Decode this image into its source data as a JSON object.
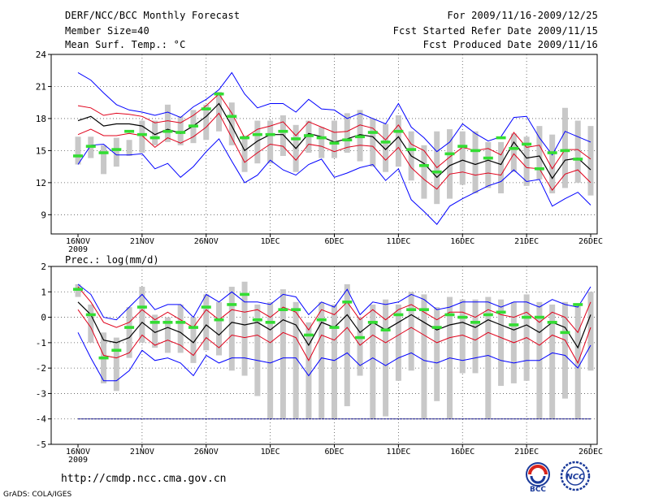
{
  "header": {
    "title": "DERF/NCC/BCC Monthly Forecast",
    "member_size": "Member Size=40",
    "variable": "Mean Surf. Temp.: °C",
    "forecast_period": "For 2009/11/16-2009/12/25",
    "fcst_started": "Fcst Started Refer Date 2009/11/15",
    "fcst_produced": "Fcst Produced Date 2009/11/16"
  },
  "footer": {
    "url": "http://cmdp.ncc.cma.gov.cn",
    "credit": "GrADS: COLA/IGES",
    "logo_bcc": "BCC",
    "logo_ncc": "NCC"
  },
  "colors": {
    "ensemble_mean": "#000000",
    "std_band": "#e0001a",
    "extreme_band": "#0000ff",
    "member_box": "#c8c8c8",
    "observed": "#33dd33",
    "floor_line": "#000080"
  },
  "chart_data": [
    {
      "type": "line",
      "title": "Mean Surf. Temp.: °C",
      "ylim": [
        7.2,
        24
      ],
      "yticks": [
        9,
        12,
        15,
        18,
        21,
        24
      ],
      "xticks": [
        {
          "day": 0,
          "label": "16NOV"
        },
        {
          "day": 5,
          "label": "21NOV"
        },
        {
          "day": 10,
          "label": "26NOV"
        },
        {
          "day": 15,
          "label": "1DEC"
        },
        {
          "day": 20,
          "label": "6DEC"
        },
        {
          "day": 25,
          "label": "11DEC"
        },
        {
          "day": 30,
          "label": "16DEC"
        },
        {
          "day": 35,
          "label": "21DEC"
        },
        {
          "day": 40,
          "label": "26DEC"
        }
      ],
      "year_label": "2009",
      "days": 40,
      "mean": [
        17.8,
        18.2,
        17.3,
        17.5,
        17.5,
        17.3,
        16.5,
        17.0,
        16.6,
        17.3,
        18.2,
        19.4,
        17.3,
        15.0,
        15.9,
        16.5,
        16.5,
        15.2,
        16.6,
        16.3,
        15.8,
        16.1,
        16.5,
        16.3,
        15.1,
        16.3,
        14.5,
        13.8,
        12.5,
        13.6,
        14.1,
        13.7,
        14.1,
        13.7,
        15.8,
        14.3,
        14.5,
        12.4,
        14.1,
        14.3,
        13.2
      ],
      "upper_std": [
        19.2,
        19.0,
        18.3,
        18.5,
        18.4,
        18.2,
        17.6,
        17.8,
        17.6,
        18.3,
        19.2,
        20.3,
        18.5,
        16.2,
        17.0,
        17.3,
        17.7,
        16.4,
        17.7,
        17.2,
        16.7,
        16.8,
        17.4,
        17.1,
        16.0,
        17.4,
        15.6,
        15.0,
        13.4,
        14.4,
        15.3,
        15.0,
        15.2,
        14.6,
        16.7,
        15.3,
        15.5,
        13.3,
        15.1,
        15.1,
        14.2
      ],
      "lower_std": [
        16.5,
        17.0,
        16.4,
        16.4,
        16.6,
        16.4,
        15.3,
        16.2,
        15.7,
        16.3,
        17.2,
        18.5,
        16.2,
        13.9,
        14.8,
        15.6,
        15.4,
        14.1,
        15.6,
        15.4,
        14.9,
        15.3,
        15.5,
        15.4,
        14.1,
        15.3,
        13.4,
        12.3,
        11.4,
        12.8,
        13.0,
        12.7,
        12.9,
        12.7,
        14.7,
        13.4,
        13.3,
        11.3,
        12.8,
        13.2,
        12.0
      ],
      "upper_extreme": [
        22.3,
        21.6,
        20.4,
        19.3,
        18.8,
        18.6,
        18.3,
        18.6,
        18.1,
        19.1,
        19.8,
        20.7,
        22.3,
        20.3,
        19.0,
        19.4,
        19.4,
        18.6,
        19.8,
        18.9,
        18.8,
        18.0,
        18.5,
        18.0,
        17.5,
        19.4,
        17.2,
        16.2,
        14.9,
        15.8,
        17.5,
        16.6,
        15.9,
        16.3,
        18.1,
        18.2,
        16.2,
        14.6,
        16.8,
        16.3,
        15.8
      ],
      "lower_extreme": [
        13.7,
        15.5,
        15.6,
        14.6,
        14.6,
        14.7,
        13.3,
        13.8,
        12.5,
        13.5,
        14.9,
        16.1,
        14.0,
        12.0,
        12.7,
        14.1,
        13.2,
        12.7,
        13.7,
        14.2,
        12.5,
        12.9,
        13.4,
        13.7,
        12.2,
        13.3,
        10.4,
        9.3,
        8.1,
        9.8,
        10.5,
        11.1,
        11.7,
        12.1,
        13.2,
        12.1,
        12.3,
        9.8,
        10.5,
        11.1,
        9.9
      ],
      "box_high": [
        16.3,
        16.3,
        15.5,
        16.2,
        16.0,
        17.8,
        17.8,
        19.3,
        18.2,
        18.8,
        19.3,
        20.5,
        19.5,
        16.4,
        17.8,
        17.8,
        18.3,
        17.4,
        17.8,
        17.2,
        17.8,
        18.5,
        18.8,
        18.0,
        17.5,
        18.3,
        16.8,
        15.5,
        16.8,
        17.0,
        16.8,
        16.8,
        15.8,
        15.8,
        16.6,
        16.3,
        17.3,
        16.5,
        19.0,
        17.8,
        17.3
      ],
      "box_low": [
        13.7,
        14.3,
        12.8,
        13.5,
        14.5,
        14.8,
        15.5,
        15.8,
        15.5,
        15.7,
        16.0,
        16.8,
        15.5,
        13.0,
        13.8,
        13.8,
        14.5,
        13.0,
        14.8,
        14.3,
        14.3,
        14.8,
        14.0,
        13.5,
        13.0,
        13.5,
        12.2,
        10.5,
        10.0,
        10.5,
        11.8,
        11.0,
        11.5,
        11.0,
        13.0,
        11.7,
        12.3,
        11.0,
        11.5,
        12.0,
        10.8
      ],
      "observed": [
        14.5,
        15.4,
        14.8,
        15.1,
        16.8,
        16.5,
        16.2,
        16.8,
        16.7,
        17.3,
        18.9,
        20.3,
        18.2,
        16.2,
        16.5,
        16.5,
        16.8,
        16.1,
        16.4,
        16.2,
        15.7,
        16.0,
        16.3,
        16.7,
        15.8,
        16.8,
        15.1,
        13.6,
        13.0,
        14.7,
        15.4,
        15.0,
        14.3,
        16.2,
        15.2,
        15.6,
        13.3,
        14.8,
        15.0,
        14.2,
        null
      ]
    },
    {
      "type": "line",
      "title": "Prec.: log(mm/d)",
      "ylim": [
        -5,
        2
      ],
      "yticks": [
        -5,
        -4,
        -3,
        -2,
        -1,
        0,
        1,
        2
      ],
      "xticks": [
        {
          "day": 0,
          "label": "16NOV"
        },
        {
          "day": 5,
          "label": "21NOV"
        },
        {
          "day": 10,
          "label": "26NOV"
        },
        {
          "day": 15,
          "label": "1DEC"
        },
        {
          "day": 20,
          "label": "6DEC"
        },
        {
          "day": 25,
          "label": "11DEC"
        },
        {
          "day": 30,
          "label": "16DEC"
        },
        {
          "day": 35,
          "label": "21DEC"
        },
        {
          "day": 40,
          "label": "26DEC"
        }
      ],
      "year_label": "2009",
      "days": 40,
      "floor": -4,
      "mean": [
        0.6,
        0.1,
        -0.9,
        -1.0,
        -0.8,
        -0.2,
        -0.6,
        -0.4,
        -0.6,
        -1.0,
        -0.3,
        -0.7,
        -0.2,
        -0.3,
        -0.2,
        -0.5,
        -0.1,
        -0.3,
        -1.1,
        -0.2,
        -0.4,
        0.1,
        -0.6,
        -0.2,
        -0.5,
        -0.2,
        0.1,
        -0.2,
        -0.5,
        -0.3,
        -0.2,
        -0.4,
        -0.1,
        -0.3,
        -0.5,
        -0.3,
        -0.6,
        -0.2,
        -0.4,
        -1.2,
        0.1
      ],
      "upper_std": [
        1.2,
        0.6,
        -0.2,
        -0.4,
        -0.2,
        0.3,
        -0.1,
        0.2,
        -0.1,
        -0.4,
        0.3,
        -0.1,
        0.3,
        0.2,
        0.3,
        0.0,
        0.4,
        0.2,
        -0.5,
        0.3,
        0.1,
        0.6,
        -0.1,
        0.3,
        -0.1,
        0.3,
        0.5,
        0.2,
        -0.1,
        0.2,
        0.2,
        0.0,
        0.3,
        0.1,
        0.0,
        0.2,
        -0.2,
        0.2,
        0.0,
        -0.6,
        0.6
      ],
      "lower_std": [
        0.3,
        -0.4,
        -1.5,
        -1.6,
        -1.4,
        -0.7,
        -1.1,
        -0.9,
        -1.1,
        -1.5,
        -0.8,
        -1.2,
        -0.7,
        -0.8,
        -0.7,
        -1.0,
        -0.6,
        -0.8,
        -1.7,
        -0.7,
        -0.9,
        -0.4,
        -1.1,
        -0.7,
        -1.0,
        -0.7,
        -0.4,
        -0.7,
        -1.0,
        -0.8,
        -0.7,
        -0.9,
        -0.6,
        -0.8,
        -1.0,
        -0.8,
        -1.1,
        -0.7,
        -0.9,
        -1.8,
        -0.4
      ],
      "upper_extreme": [
        1.3,
        0.9,
        0.0,
        -0.1,
        0.4,
        0.9,
        0.3,
        0.5,
        0.5,
        0.0,
        0.9,
        0.6,
        1.0,
        0.6,
        0.6,
        0.5,
        0.9,
        0.8,
        0.1,
        0.6,
        0.4,
        1.1,
        0.1,
        0.6,
        0.5,
        0.6,
        0.9,
        0.7,
        0.3,
        0.4,
        0.6,
        0.6,
        0.6,
        0.4,
        0.6,
        0.6,
        0.4,
        0.7,
        0.5,
        0.4,
        1.2
      ],
      "lower_extreme": [
        -0.6,
        -1.6,
        -2.5,
        -2.5,
        -2.1,
        -1.3,
        -1.7,
        -1.6,
        -1.8,
        -2.3,
        -1.5,
        -1.8,
        -1.6,
        -1.6,
        -1.7,
        -1.8,
        -1.6,
        -1.6,
        -2.3,
        -1.6,
        -1.7,
        -1.4,
        -1.9,
        -1.6,
        -1.9,
        -1.6,
        -1.4,
        -1.7,
        -1.8,
        -1.6,
        -1.7,
        -1.6,
        -1.5,
        -1.7,
        -1.8,
        -1.7,
        -1.7,
        -1.4,
        -1.5,
        -2.0,
        -1.1
      ],
      "box_high": [
        1.3,
        0.5,
        -0.6,
        -0.8,
        0.4,
        1.2,
        0.1,
        0.0,
        0.5,
        0.0,
        0.9,
        0.6,
        1.2,
        1.4,
        0.5,
        0.6,
        1.1,
        0.6,
        -0.2,
        0.6,
        0.5,
        1.3,
        0.0,
        0.5,
        0.7,
        0.5,
        1.0,
        0.9,
        0.4,
        0.8,
        0.7,
        0.7,
        0.8,
        0.7,
        0.6,
        0.9,
        0.6,
        0.5,
        0.6,
        0.5,
        1.0
      ],
      "box_low": [
        0.8,
        -1.0,
        -2.6,
        -2.9,
        -1.6,
        -1.0,
        -1.2,
        -1.4,
        -1.4,
        -1.8,
        -1.3,
        -1.5,
        -2.1,
        -2.3,
        -3.1,
        -4.0,
        -4.0,
        -4.0,
        -4.0,
        -4.0,
        -4.0,
        -3.5,
        -2.3,
        -4.0,
        -3.9,
        -2.5,
        -2.1,
        -4.0,
        -3.3,
        -4.0,
        -2.2,
        -2.2,
        -4.0,
        -2.7,
        -2.6,
        -2.5,
        -4.0,
        -4.0,
        -3.2,
        -4.0,
        -2.1
      ],
      "observed": [
        1.1,
        0.1,
        -1.6,
        -1.3,
        -0.4,
        0.4,
        -0.2,
        -0.2,
        -0.2,
        -0.4,
        0.4,
        -0.1,
        0.5,
        0.9,
        -0.1,
        -0.2,
        0.3,
        0.3,
        -0.7,
        -0.1,
        -0.4,
        0.6,
        -0.8,
        -0.2,
        -0.5,
        0.1,
        0.3,
        0.3,
        -0.4,
        0.1,
        0.0,
        -0.2,
        0.1,
        0.2,
        -0.3,
        0.0,
        0.0,
        -0.2,
        -0.6,
        0.5,
        null
      ]
    }
  ]
}
